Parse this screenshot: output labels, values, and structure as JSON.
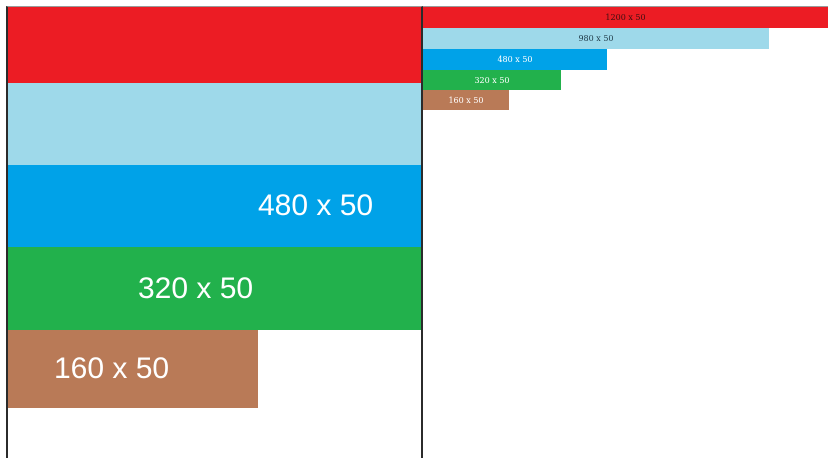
{
  "colors": {
    "red": "#ec1c24",
    "light_blue": "#9ed9ea",
    "blue": "#00a2e8",
    "green": "#22b14c",
    "brown": "#b97a57"
  },
  "left_panel": {
    "bars": [
      {
        "id": "1200",
        "label": ""
      },
      {
        "id": "980",
        "label": ""
      },
      {
        "id": "480",
        "label": "480 x 50"
      },
      {
        "id": "320",
        "label": "320 x 50"
      },
      {
        "id": "160",
        "label": "160 x 50"
      }
    ]
  },
  "right_panel": {
    "bars": [
      {
        "id": "1200",
        "label": "1200 x 50"
      },
      {
        "id": "980",
        "label": "980 x 50"
      },
      {
        "id": "480",
        "label": "480 x 50"
      },
      {
        "id": "320",
        "label": "320 x 50"
      },
      {
        "id": "160",
        "label": "160 x 50"
      }
    ]
  }
}
